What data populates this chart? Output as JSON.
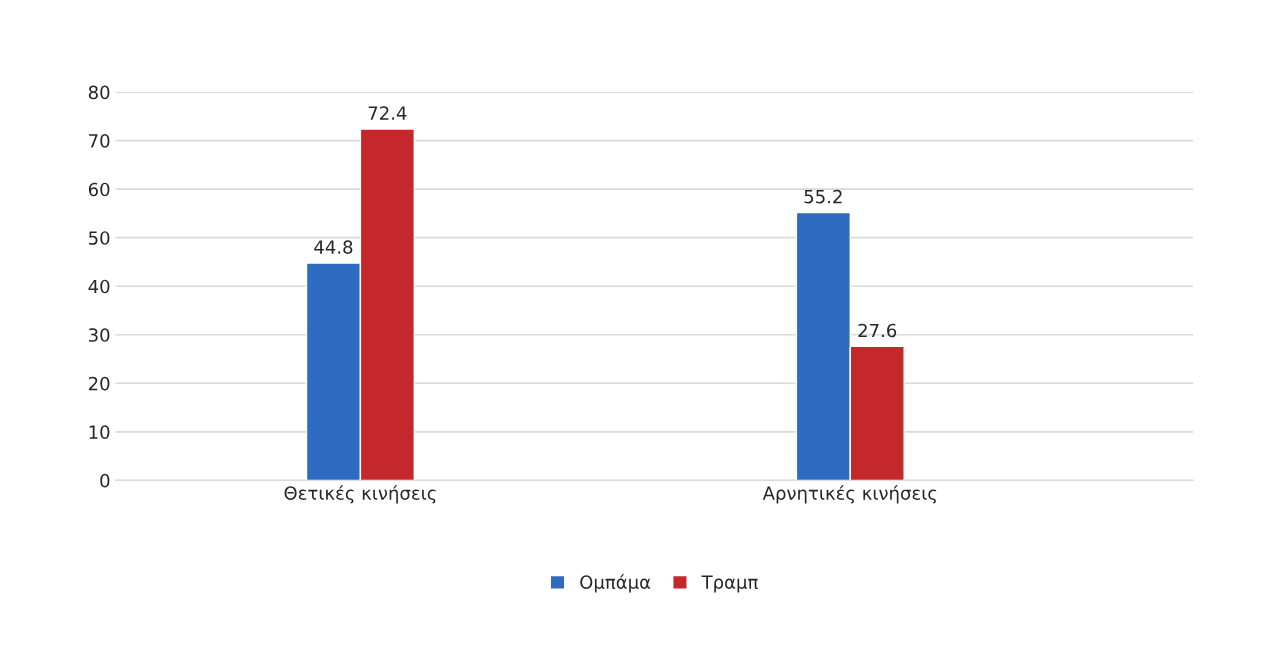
{
  "chart_data": {
    "type": "bar",
    "categories": [
      "Θετικές κινήσεις",
      "Αρνητικές κινήσεις"
    ],
    "series": [
      {
        "name": "Ομπάμα",
        "color": "#2e6cc2",
        "values": [
          44.8,
          55.2
        ]
      },
      {
        "name": "Τραμπ",
        "color": "#c4282a",
        "values": [
          72.4,
          27.6
        ]
      }
    ],
    "ylim": [
      0,
      80
    ],
    "yticks": [
      0,
      10,
      20,
      30,
      40,
      50,
      60,
      70,
      80
    ],
    "grid": "y",
    "legend": "bottom",
    "data_labels": true
  }
}
